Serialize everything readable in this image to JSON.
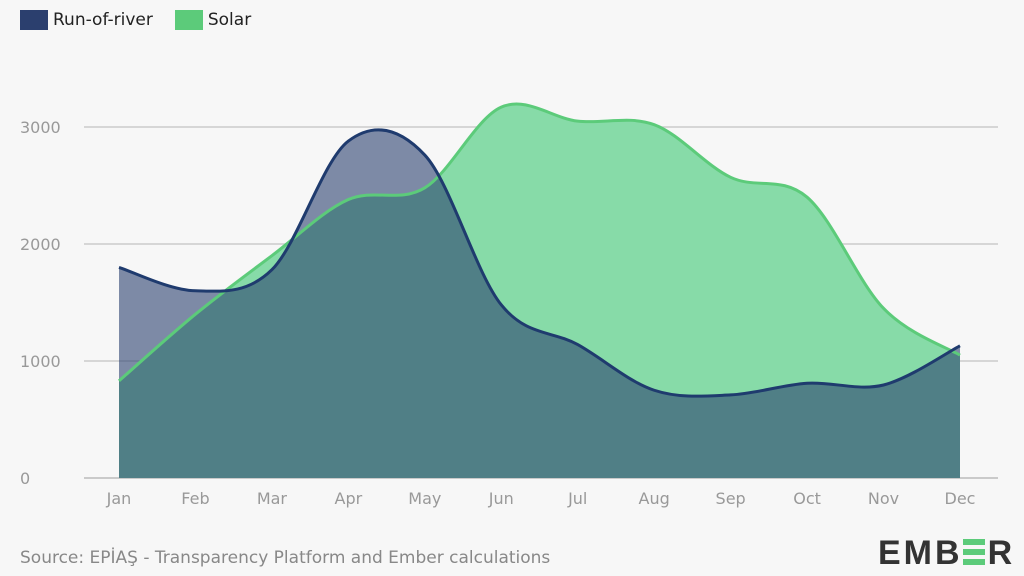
{
  "chart_data": {
    "type": "area",
    "title": "",
    "xlabel": "",
    "ylabel": "",
    "categories": [
      "Jan",
      "Feb",
      "Mar",
      "Apr",
      "May",
      "Jun",
      "Jul",
      "Aug",
      "Sep",
      "Oct",
      "Nov",
      "Dec"
    ],
    "ylim": [
      0,
      3300
    ],
    "yticks": [
      0,
      1000,
      2000,
      3000
    ],
    "ytick_labels": [
      "0",
      "1000",
      "2000",
      "3000"
    ],
    "grid": true,
    "legend_position": "top-left",
    "series": [
      {
        "name": "Solar",
        "color": "#5ccb7a",
        "fill": "#87dba8",
        "values": [
          830,
          1400,
          1900,
          2380,
          2480,
          3170,
          3050,
          3020,
          2570,
          2400,
          1450,
          1050
        ]
      },
      {
        "name": "Run-of-river",
        "color": "#1f3b6e",
        "fill": "#2b4170",
        "values": [
          1800,
          1600,
          1780,
          2880,
          2760,
          1480,
          1140,
          750,
          710,
          810,
          795,
          1130
        ]
      }
    ]
  },
  "legend": {
    "run_of_river": "Run-of-river",
    "solar": "Solar"
  },
  "source": "Source: EPİAŞ - Transparency Platform and Ember calculations",
  "logo": {
    "text": "EMBER",
    "part1": "EMB",
    "part2": "R"
  }
}
